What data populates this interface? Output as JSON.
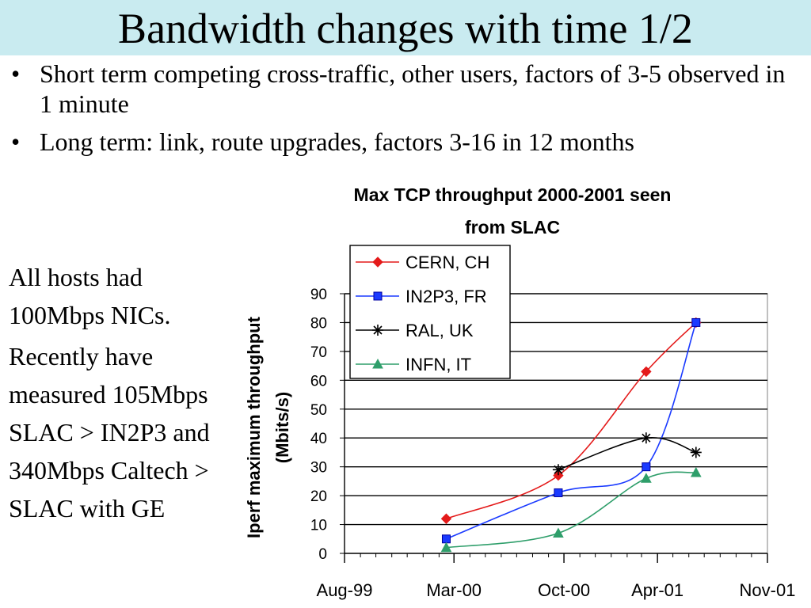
{
  "slide": {
    "title": "Bandwidth changes with time 1/2",
    "bullet_symbol": "•",
    "bullets": [
      "Short term competing cross-traffic, other users, factors of 3-5 observed in 1 minute",
      "Long term: link, route upgrades, factors 3-16 in 12 months"
    ],
    "side_paragraphs": [
      "All hosts had 100Mbps NICs.",
      "Recently have measured 105Mbps SLAC > IN2P3 and 340Mbps Caltech > SLAC with GE"
    ]
  },
  "chart_data": {
    "type": "line",
    "title_lines": [
      "Max TCP throughput 2000-2001 seen",
      "from SLAC"
    ],
    "ylabel_lines": [
      "Iperf maximum throughput",
      "(Mbits/s)"
    ],
    "xlabel": "",
    "x_ticks": [
      "Aug-99",
      "Mar-00",
      "Oct-00",
      "Apr-01",
      "Nov-01"
    ],
    "x_tick_dates": [
      "1999-08-01",
      "2000-03-01",
      "2000-10-01",
      "2001-04-01",
      "2001-11-01"
    ],
    "xlim": [
      "1999-08-01",
      "2001-11-01"
    ],
    "y_ticks": [
      0,
      10,
      20,
      30,
      40,
      50,
      60,
      70,
      80,
      90
    ],
    "ylim": [
      0,
      90
    ],
    "grid": "horizontal",
    "legend_position": "top-left",
    "series": [
      {
        "name": "CERN, CH",
        "color": "#e41a1a",
        "marker": "diamond",
        "points": [
          [
            "2000-02-15",
            12
          ],
          [
            "2000-09-20",
            27
          ],
          [
            "2001-03-10",
            63
          ],
          [
            "2001-06-15",
            80
          ]
        ]
      },
      {
        "name": "IN2P3, FR",
        "color": "#1a3aff",
        "marker": "square",
        "points": [
          [
            "2000-02-15",
            5
          ],
          [
            "2000-09-20",
            21
          ],
          [
            "2001-03-10",
            30
          ],
          [
            "2001-06-15",
            80
          ]
        ]
      },
      {
        "name": "RAL, UK",
        "color": "#000000",
        "marker": "star",
        "points": [
          [
            "2000-09-20",
            29
          ],
          [
            "2001-03-10",
            40
          ],
          [
            "2001-06-15",
            35
          ]
        ]
      },
      {
        "name": "INFN, IT",
        "color": "#2e9e6a",
        "marker": "triangle",
        "points": [
          [
            "2000-02-15",
            2
          ],
          [
            "2000-09-20",
            7
          ],
          [
            "2001-03-10",
            26
          ],
          [
            "2001-06-15",
            28
          ]
        ]
      }
    ]
  }
}
